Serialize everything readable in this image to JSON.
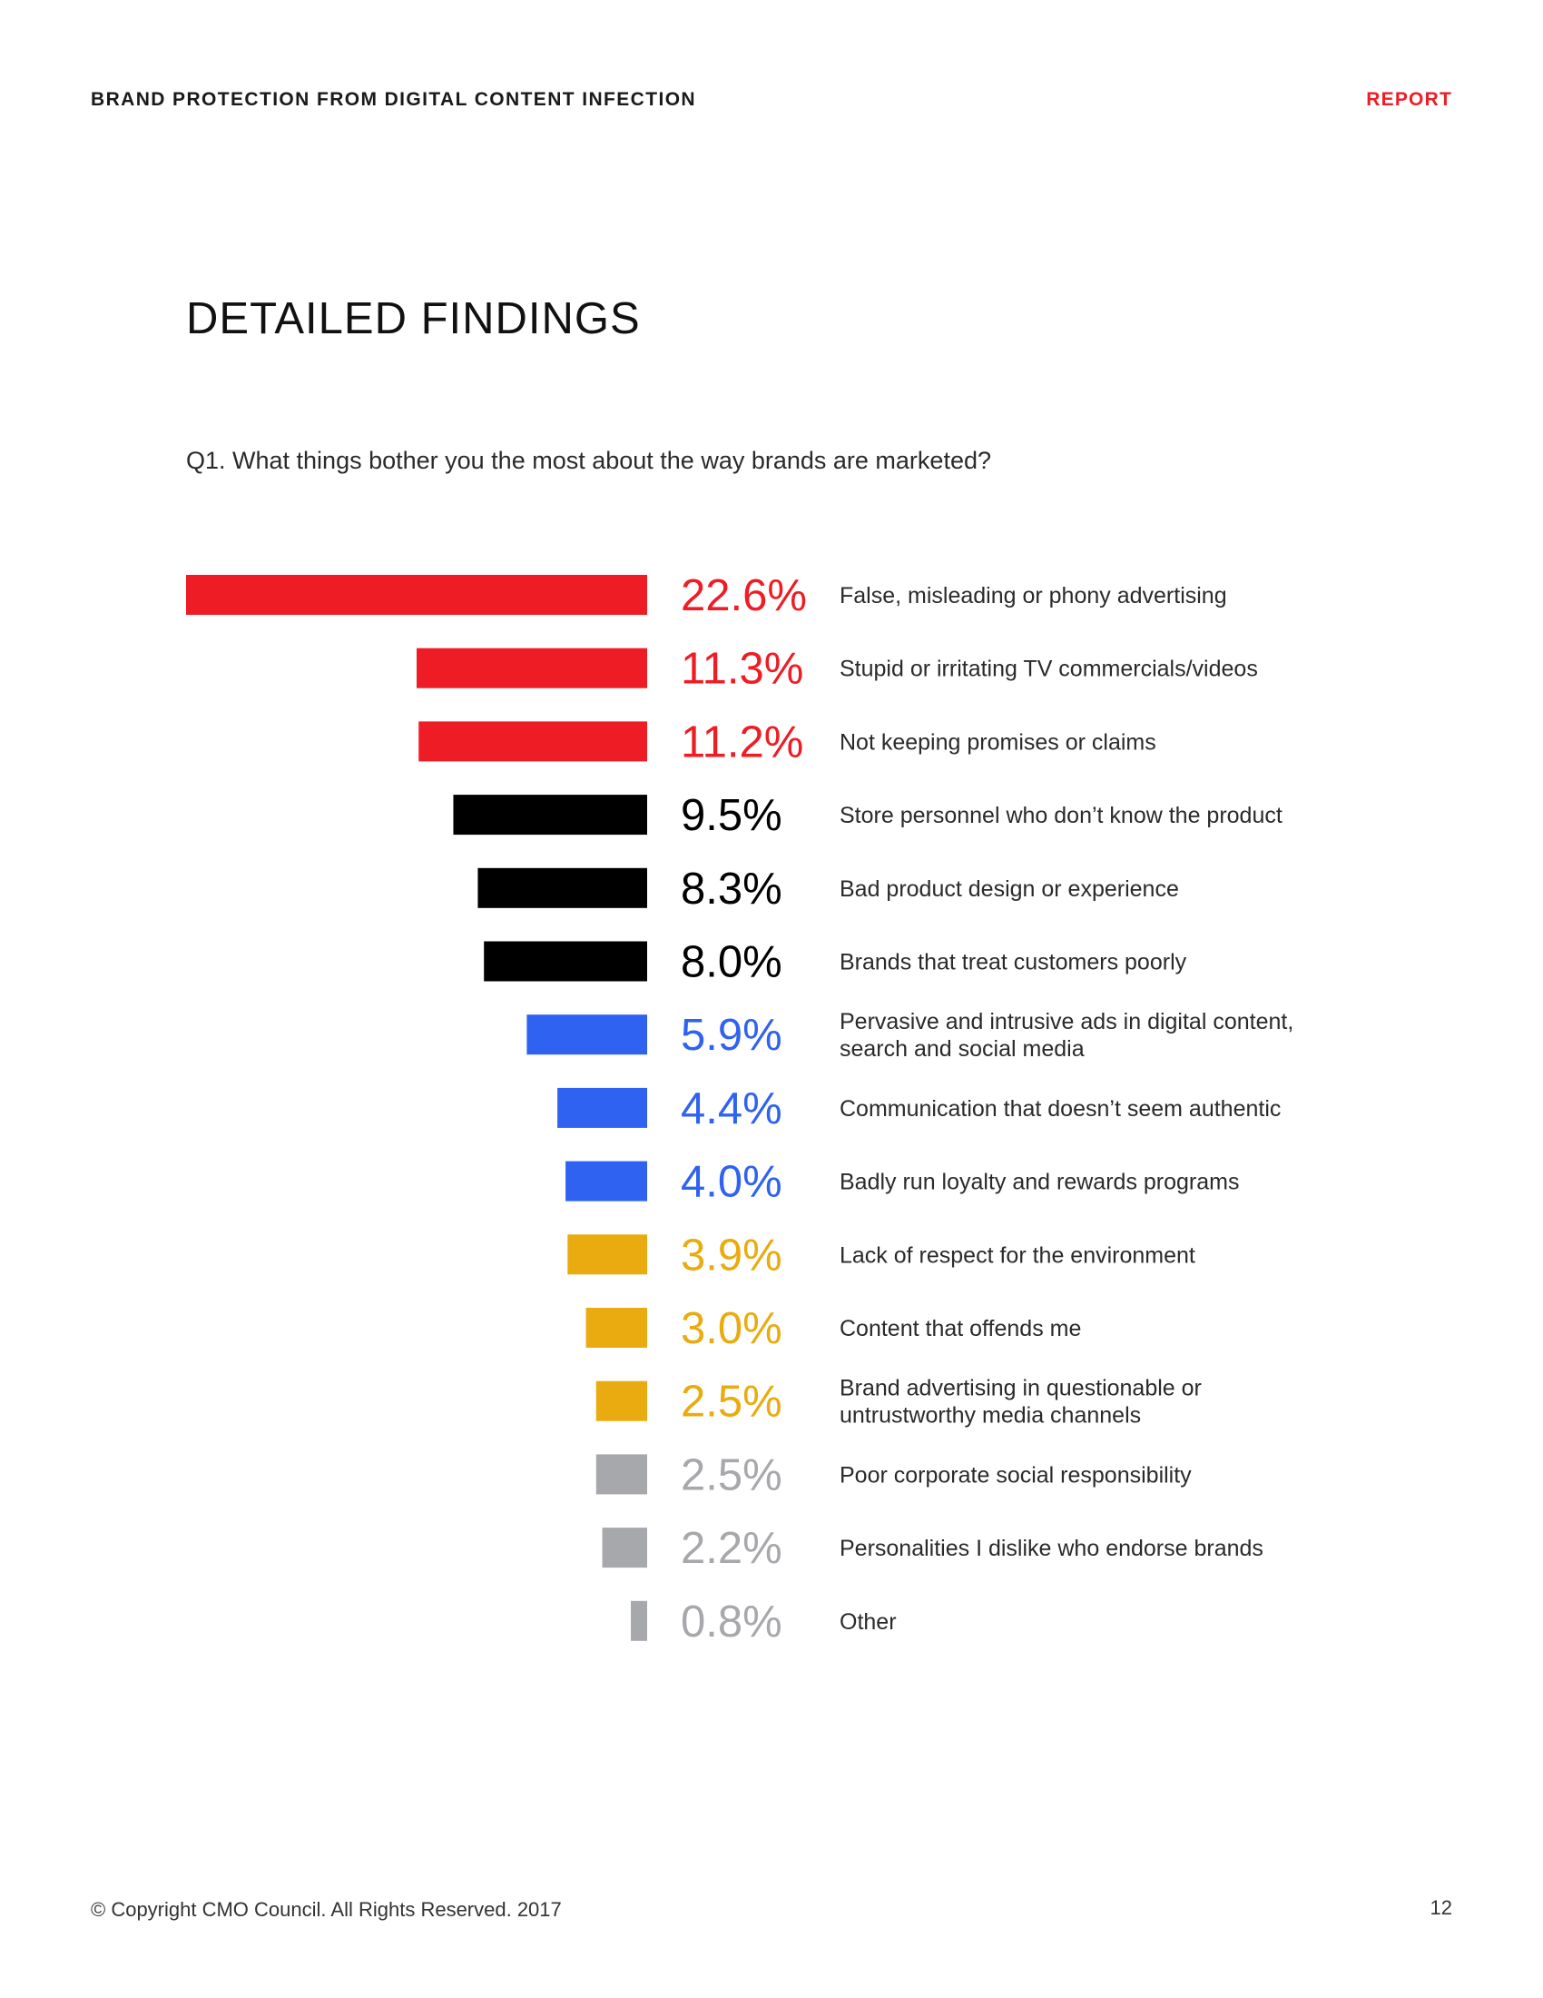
{
  "header": {
    "title": "BRAND PROTECTION FROM DIGITAL CONTENT INFECTION",
    "report_label": "REPORT",
    "report_color": "#ee1c25"
  },
  "section_title": "DETAILED FINDINGS",
  "question": "Q1. What things bother you the most about the way brands are marketed?",
  "footer": {
    "copyright": "© Copyright CMO Council. All Rights Reserved. 2017",
    "page_number": "12"
  },
  "chart_data": {
    "type": "bar",
    "orientation": "horizontal",
    "value_unit": "%",
    "categories": [
      "False, misleading or phony advertising",
      "Stupid or irritating TV commercials/videos",
      "Not keeping promises or claims",
      "Store personnel who don’t know the product",
      "Bad product design or experience",
      "Brands that treat customers poorly",
      "Pervasive and intrusive ads in digital content, search and social media",
      "Communication that doesn’t seem authentic",
      "Badly run loyalty and rewards programs",
      "Lack of respect for the environment",
      "Content that offends me",
      "Brand advertising in questionable or untrustworthy media channels",
      "Poor corporate social responsibility",
      "Personalities I dislike who endorse brands",
      "Other"
    ],
    "category_lines": [
      [
        "False, misleading or phony advertising"
      ],
      [
        "Stupid or irritating TV commercials/videos"
      ],
      [
        "Not keeping promises or claims"
      ],
      [
        "Store personnel who don’t know the product"
      ],
      [
        "Bad product design or experience"
      ],
      [
        "Brands that treat customers poorly"
      ],
      [
        "Pervasive and intrusive ads in digital content,",
        "search and social media"
      ],
      [
        "Communication that doesn’t seem authentic"
      ],
      [
        "Badly run loyalty and rewards programs"
      ],
      [
        "Lack of respect for the environment"
      ],
      [
        "Content that offends me"
      ],
      [
        "Brand advertising in questionable or",
        "untrustworthy media channels"
      ],
      [
        "Poor corporate social responsibility"
      ],
      [
        "Personalities I dislike who endorse brands"
      ],
      [
        "Other"
      ]
    ],
    "values": [
      22.6,
      11.3,
      11.2,
      9.5,
      8.3,
      8.0,
      5.9,
      4.4,
      4.0,
      3.9,
      3.0,
      2.5,
      2.5,
      2.2,
      0.8
    ],
    "value_labels": [
      "22.6%",
      "11.3%",
      "11.2%",
      "9.5%",
      "8.3%",
      "8.0%",
      "5.9%",
      "4.4%",
      "4.0%",
      "3.9%",
      "3.0%",
      "2.5%",
      "2.5%",
      "2.2%",
      "0.8%"
    ],
    "colors": [
      "#ee1c25",
      "#ee1c25",
      "#ee1c25",
      "#000000",
      "#000000",
      "#000000",
      "#2f62f0",
      "#2f62f0",
      "#2f62f0",
      "#e9ab0f",
      "#e9ab0f",
      "#e9ab0f",
      "#a7a8ab",
      "#a7a8ab",
      "#a7a8ab"
    ],
    "xlim": [
      0,
      22.6
    ],
    "grid": false,
    "legend": "none"
  }
}
